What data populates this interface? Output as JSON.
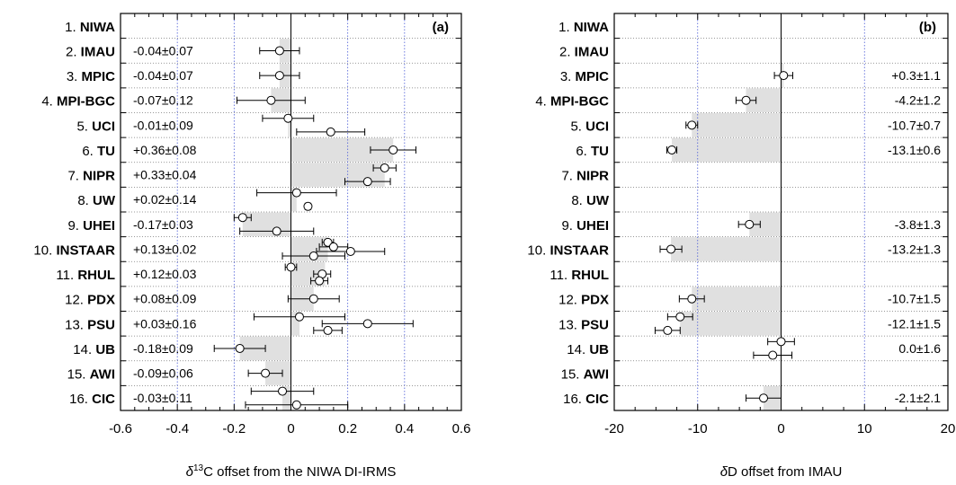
{
  "labs": [
    "NIWA",
    "IMAU",
    "MPIC",
    "MPI-BGC",
    "UCI",
    "TU",
    "NIPR",
    "UW",
    "UHEI",
    "INSTAAR",
    "RHUL",
    "PDX",
    "PSU",
    "UB",
    "AWI",
    "CIC"
  ],
  "chart_data": [
    {
      "type": "errorbar",
      "panel_label": "(a)",
      "xlabel_parts": [
        "δ",
        "13",
        "C offset from the NIWA DI-IRMS"
      ],
      "xlim": [
        -0.6,
        0.6
      ],
      "xticks": [
        -0.6,
        -0.4,
        -0.2,
        0,
        0.2,
        0.4,
        0.6
      ],
      "xtick_labels": [
        "-0.6",
        "-0.4",
        "-0.2",
        "0",
        "0.2",
        "0.4",
        "0.6"
      ],
      "dotted_gridlines_at": [
        -0.4,
        -0.2,
        0.2,
        0.4
      ],
      "rows": [
        {
          "lab": "NIWA",
          "bar": null,
          "label": "",
          "points": []
        },
        {
          "lab": "IMAU",
          "bar": -0.04,
          "label": "-0.04±0.07",
          "points": [
            {
              "x": -0.04,
              "e": 0.07
            }
          ]
        },
        {
          "lab": "MPIC",
          "bar": -0.04,
          "label": "-0.04±0.07",
          "points": [
            {
              "x": -0.04,
              "e": 0.07
            }
          ]
        },
        {
          "lab": "MPI-BGC",
          "bar": -0.07,
          "label": "-0.07±0.12",
          "points": [
            {
              "x": -0.07,
              "e": 0.12
            }
          ]
        },
        {
          "lab": "UCI",
          "bar": -0.01,
          "label": "-0.01±0.09",
          "points": [
            {
              "x": -0.01,
              "e": 0.09
            },
            {
              "x": 0.14,
              "e": 0.12
            }
          ]
        },
        {
          "lab": "TU",
          "bar": 0.36,
          "label": "+0.36±0.08",
          "points": [
            {
              "x": 0.36,
              "e": 0.08
            }
          ]
        },
        {
          "lab": "NIPR",
          "bar": 0.33,
          "label": "+0.33±0.04",
          "points": [
            {
              "x": 0.33,
              "e": 0.04
            },
            {
              "x": 0.27,
              "e": 0.08
            }
          ]
        },
        {
          "lab": "UW",
          "bar": 0.02,
          "label": "+0.02±0.14",
          "points": [
            {
              "x": 0.02,
              "e": 0.14
            },
            {
              "x": 0.06,
              "e": 0.01
            }
          ]
        },
        {
          "lab": "UHEI",
          "bar": -0.17,
          "label": "-0.17±0.03",
          "points": [
            {
              "x": -0.17,
              "e": 0.03
            },
            {
              "x": -0.05,
              "e": 0.13
            }
          ]
        },
        {
          "lab": "INSTAAR",
          "bar": 0.13,
          "label": "+0.13±0.02",
          "points": [
            {
              "x": 0.13,
              "e": 0.02
            },
            {
              "x": 0.15,
              "e": 0.05
            },
            {
              "x": 0.21,
              "e": 0.12
            },
            {
              "x": 0.08,
              "e": 0.11
            }
          ]
        },
        {
          "lab": "RHUL",
          "bar": 0.12,
          "label": "+0.12±0.03",
          "points": [
            {
              "x": 0.0,
              "e": 0.02
            },
            {
              "x": 0.11,
              "e": 0.03
            },
            {
              "x": 0.1,
              "e": 0.03
            }
          ]
        },
        {
          "lab": "PDX",
          "bar": 0.08,
          "label": "+0.08±0.09",
          "points": [
            {
              "x": 0.08,
              "e": 0.09
            }
          ]
        },
        {
          "lab": "PSU",
          "bar": 0.03,
          "label": "+0.03±0.16",
          "points": [
            {
              "x": 0.03,
              "e": 0.16
            },
            {
              "x": 0.27,
              "e": 0.16
            },
            {
              "x": 0.13,
              "e": 0.05
            }
          ]
        },
        {
          "lab": "UB",
          "bar": -0.18,
          "label": "-0.18±0.09",
          "points": [
            {
              "x": -0.18,
              "e": 0.09
            }
          ]
        },
        {
          "lab": "AWI",
          "bar": -0.09,
          "label": "-0.09±0.06",
          "points": [
            {
              "x": -0.09,
              "e": 0.06
            }
          ]
        },
        {
          "lab": "CIC",
          "bar": -0.03,
          "label": "-0.03±0.11",
          "points": [
            {
              "x": -0.03,
              "e": 0.11
            },
            {
              "x": 0.02,
              "e": 0.18
            }
          ]
        }
      ]
    },
    {
      "type": "errorbar",
      "panel_label": "(b)",
      "xlabel_parts": [
        "δ",
        "",
        "D offset from IMAU"
      ],
      "xlim": [
        -20,
        20
      ],
      "xticks": [
        -20,
        -10,
        0,
        10,
        20
      ],
      "xtick_labels": [
        "-20",
        "-10",
        "0",
        "10",
        "20"
      ],
      "dotted_gridlines_at": [
        -10,
        10
      ],
      "rows": [
        {
          "lab": "NIWA",
          "bar": null,
          "label": "",
          "points": []
        },
        {
          "lab": "IMAU",
          "bar": null,
          "label": "",
          "points": []
        },
        {
          "lab": "MPIC",
          "bar": 0.3,
          "label": "+0.3±1.1",
          "points": [
            {
              "x": 0.3,
              "e": 1.1
            }
          ]
        },
        {
          "lab": "MPI-BGC",
          "bar": -4.2,
          "label": "-4.2±1.2",
          "points": [
            {
              "x": -4.2,
              "e": 1.2
            }
          ]
        },
        {
          "lab": "UCI",
          "bar": -10.7,
          "label": "-10.7±0.7",
          "points": [
            {
              "x": -10.7,
              "e": 0.7
            }
          ]
        },
        {
          "lab": "TU",
          "bar": -13.1,
          "label": "-13.1±0.6",
          "points": [
            {
              "x": -13.1,
              "e": 0.6
            }
          ]
        },
        {
          "lab": "NIPR",
          "bar": null,
          "label": "",
          "points": []
        },
        {
          "lab": "UW",
          "bar": null,
          "label": "",
          "points": []
        },
        {
          "lab": "UHEI",
          "bar": -3.8,
          "label": "-3.8±1.3",
          "points": [
            {
              "x": -3.8,
              "e": 1.3
            }
          ]
        },
        {
          "lab": "INSTAAR",
          "bar": -13.2,
          "label": "-13.2±1.3",
          "points": [
            {
              "x": -13.2,
              "e": 1.3
            }
          ]
        },
        {
          "lab": "RHUL",
          "bar": null,
          "label": "",
          "points": []
        },
        {
          "lab": "PDX",
          "bar": -10.7,
          "label": "-10.7±1.5",
          "points": [
            {
              "x": -10.7,
              "e": 1.5
            }
          ]
        },
        {
          "lab": "PSU",
          "bar": -12.1,
          "label": "-12.1±1.5",
          "points": [
            {
              "x": -12.1,
              "e": 1.5
            },
            {
              "x": -13.6,
              "e": 1.5
            }
          ]
        },
        {
          "lab": "UB",
          "bar": 0.0,
          "label": "0.0±1.6",
          "points": [
            {
              "x": 0.0,
              "e": 1.6
            },
            {
              "x": -1.0,
              "e": 2.3
            }
          ]
        },
        {
          "lab": "AWI",
          "bar": null,
          "label": "",
          "points": []
        },
        {
          "lab": "CIC",
          "bar": -2.1,
          "label": "-2.1±2.1",
          "points": [
            {
              "x": -2.1,
              "e": 2.1
            }
          ]
        }
      ]
    }
  ]
}
